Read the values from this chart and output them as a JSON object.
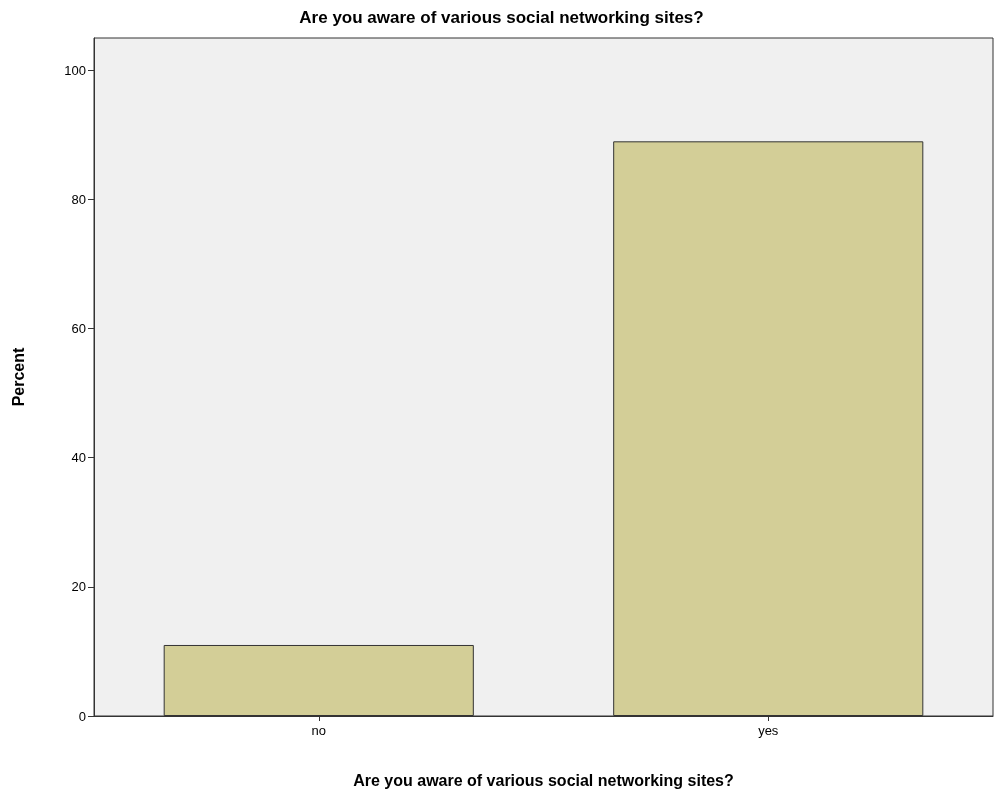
{
  "chart_data": {
    "type": "bar",
    "title": "Are you aware of various social networking sites?",
    "xlabel": "Are you aware of various social networking sites?",
    "ylabel": "Percent",
    "categories": [
      "no",
      "yes"
    ],
    "values": [
      11,
      89
    ],
    "color": "#d3ce97",
    "ylim": [
      0,
      105
    ],
    "yticks": [
      0,
      20,
      40,
      60,
      80,
      100
    ],
    "grid": false
  }
}
